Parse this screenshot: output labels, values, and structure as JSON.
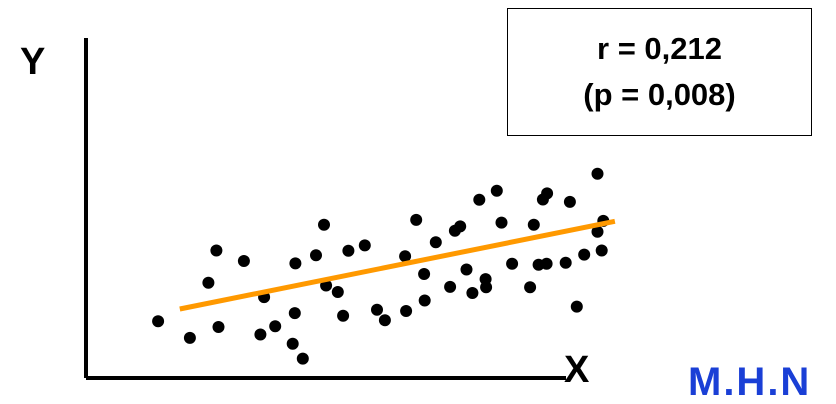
{
  "chart_data": {
    "type": "scatter",
    "xlabel": "X",
    "ylabel": "Y",
    "annotation": {
      "line1": "r = 0,212",
      "line2": "(p = 0,008)"
    },
    "xlim": [
      0,
      100
    ],
    "ylim": [
      0,
      100
    ],
    "grid": false,
    "legend": "none",
    "trendline": {
      "x": [
        17.7,
        99.8
      ],
      "y": [
        20.3,
        46.1
      ],
      "color": "#ff9900"
    },
    "point_color": "#000000",
    "points": {
      "x": [
        13.6,
        19.6,
        24.6,
        23.1,
        25.0,
        29.8,
        32.9,
        33.6,
        35.7,
        39.5,
        39.0,
        39.4,
        40.9,
        43.4,
        44.9,
        45.3,
        47.5,
        48.5,
        49.5,
        52.6,
        54.9,
        56.4,
        60.2,
        60.4,
        62.3,
        63.8,
        63.9,
        66.0,
        68.7,
        69.6,
        70.6,
        71.8,
        72.9,
        74.2,
        75.4,
        75.5,
        77.5,
        78.4,
        80.4,
        83.8,
        84.5,
        85.4,
        86.2,
        86.9,
        87.0,
        90.5,
        91.3,
        92.6,
        94.0,
        96.5,
        96.5,
        97.3,
        97.6
      ],
      "y": [
        16.7,
        11.8,
        37.5,
        28.0,
        15.0,
        34.4,
        12.8,
        23.8,
        15.2,
        33.7,
        10.1,
        19.1,
        5.7,
        36.1,
        45.1,
        27.2,
        25.3,
        18.3,
        37.4,
        39.0,
        20.1,
        17.0,
        35.8,
        19.7,
        46.5,
        30.6,
        22.8,
        39.9,
        26.8,
        43.3,
        44.6,
        31.9,
        25.0,
        52.4,
        29.1,
        26.7,
        55.1,
        45.7,
        33.6,
        26.7,
        45.1,
        33.3,
        52.5,
        33.6,
        54.3,
        33.9,
        51.8,
        21.0,
        36.3,
        43.0,
        60.1,
        37.5,
        46.2
      ]
    }
  }
}
